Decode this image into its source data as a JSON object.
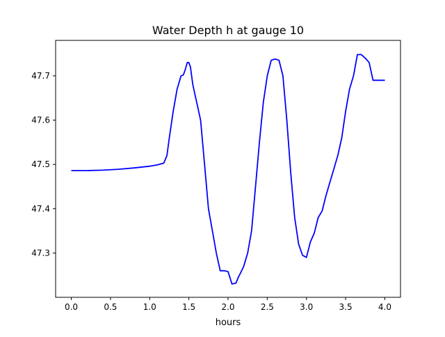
{
  "chart_data": {
    "type": "line",
    "title": "Water Depth h at gauge 10",
    "xlabel": "hours",
    "ylabel": "",
    "xlim": [
      -0.2,
      4.2
    ],
    "ylim": [
      47.2,
      47.78
    ],
    "xticks": [
      0.0,
      0.5,
      1.0,
      1.5,
      2.0,
      2.5,
      3.0,
      3.5,
      4.0
    ],
    "xtick_labels": [
      "0.0",
      "0.5",
      "1.0",
      "1.5",
      "2.0",
      "2.5",
      "3.0",
      "3.5",
      "4.0"
    ],
    "yticks": [
      47.3,
      47.4,
      47.5,
      47.6,
      47.7
    ],
    "ytick_labels": [
      "47.3",
      "47.4",
      "47.5",
      "47.6",
      "47.7"
    ],
    "grid": false,
    "series": [
      {
        "color": "#0000ff",
        "x": [
          0.0,
          0.2,
          0.4,
          0.6,
          0.8,
          1.0,
          1.1,
          1.18,
          1.22,
          1.25,
          1.3,
          1.35,
          1.4,
          1.43,
          1.45,
          1.48,
          1.5,
          1.52,
          1.55,
          1.6,
          1.65,
          1.7,
          1.75,
          1.8,
          1.85,
          1.9,
          1.95,
          2.0,
          2.05,
          2.1,
          2.13,
          2.16,
          2.2,
          2.25,
          2.3,
          2.35,
          2.4,
          2.45,
          2.5,
          2.55,
          2.6,
          2.65,
          2.7,
          2.75,
          2.8,
          2.85,
          2.9,
          2.95,
          3.0,
          3.05,
          3.1,
          3.15,
          3.2,
          3.25,
          3.3,
          3.35,
          3.4,
          3.45,
          3.5,
          3.55,
          3.6,
          3.65,
          3.7,
          3.75,
          3.8,
          3.85,
          3.9,
          3.95,
          4.0
        ],
        "y": [
          47.486,
          47.486,
          47.487,
          47.489,
          47.492,
          47.496,
          47.499,
          47.503,
          47.52,
          47.56,
          47.62,
          47.67,
          47.7,
          47.702,
          47.712,
          47.73,
          47.73,
          47.72,
          47.68,
          47.64,
          47.6,
          47.5,
          47.4,
          47.35,
          47.3,
          47.26,
          47.26,
          47.258,
          47.23,
          47.232,
          47.245,
          47.255,
          47.27,
          47.3,
          47.35,
          47.45,
          47.55,
          47.64,
          47.7,
          47.735,
          47.738,
          47.735,
          47.7,
          47.6,
          47.48,
          47.38,
          47.32,
          47.295,
          47.29,
          47.325,
          47.345,
          47.38,
          47.395,
          47.43,
          47.46,
          47.49,
          47.52,
          47.56,
          47.62,
          47.67,
          47.7,
          47.748,
          47.748,
          47.74,
          47.73,
          47.69,
          47.69,
          47.69,
          47.69
        ]
      }
    ]
  }
}
